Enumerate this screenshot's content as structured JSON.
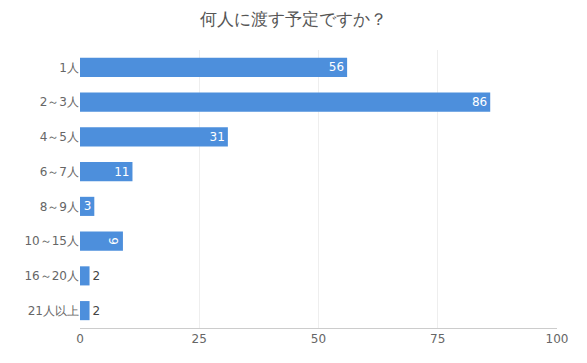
{
  "chart_data": {
    "type": "bar",
    "orientation": "horizontal",
    "title": "何人に渡す予定ですか？",
    "categories": [
      "1人",
      "2～3人",
      "4～5人",
      "6～7人",
      "8～9人",
      "10～15人",
      "16～20人",
      "21人以上"
    ],
    "values": [
      56,
      86,
      31,
      11,
      3,
      9,
      2,
      2
    ],
    "color": "#4d8fdc",
    "xlim": [
      0,
      100
    ],
    "xticks": [
      0,
      25,
      50,
      75,
      100
    ],
    "grid": true,
    "data_labels": true
  }
}
